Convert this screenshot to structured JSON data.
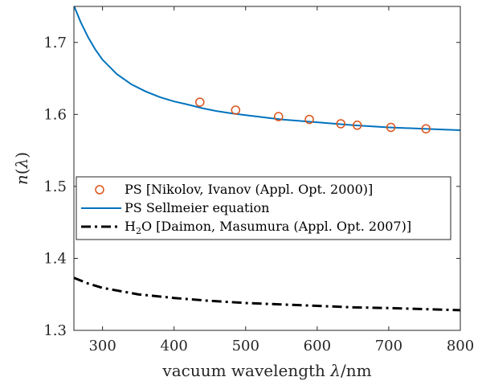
{
  "chart_data": {
    "type": "line",
    "xlabel_prefix": "vacuum wavelength ",
    "xlabel_symbol": "λ",
    "xlabel_suffix": "/nm",
    "ylabel_prefix": "n(",
    "ylabel_symbol": "λ",
    "ylabel_suffix": ")",
    "xlim": [
      260,
      800
    ],
    "ylim": [
      1.3,
      1.75
    ],
    "xticks": [
      300,
      400,
      500,
      600,
      700,
      800
    ],
    "yticks": [
      1.3,
      1.4,
      1.5,
      1.6,
      1.7
    ],
    "grid": false,
    "legend_position": "middle-left",
    "colors": {
      "ps_data": "#D95319",
      "ps_sellmeier": "#0072BD",
      "h2o": "#000000",
      "axes": "#262626"
    },
    "legend": [
      {
        "key": "ps_data",
        "label": "PS [Nikolov, Ivanov (Appl. Opt. 2000)]"
      },
      {
        "key": "ps_sellmeier",
        "label": "PS Sellmeier equation"
      },
      {
        "key": "h2o",
        "label_prefix": "H",
        "label_sub": "2",
        "label_suffix": "O [Daimon, Masumura (Appl. Opt. 2007)]"
      }
    ],
    "series": [
      {
        "key": "ps_data",
        "name": "PS [Nikolov, Ivanov (Appl. Opt. 2000)]",
        "style": "markers",
        "x": [
          436,
          486,
          546,
          589,
          633,
          656,
          703,
          752
        ],
        "y": [
          1.617,
          1.606,
          1.597,
          1.593,
          1.587,
          1.585,
          1.582,
          1.58
        ]
      },
      {
        "key": "ps_sellmeier",
        "name": "PS Sellmeier equation",
        "style": "solid",
        "x": [
          260,
          270,
          280,
          290,
          300,
          320,
          340,
          360,
          380,
          400,
          420,
          440,
          460,
          480,
          500,
          550,
          600,
          650,
          700,
          750,
          800
        ],
        "y": [
          1.751,
          1.727,
          1.707,
          1.69,
          1.676,
          1.656,
          1.642,
          1.632,
          1.624,
          1.618,
          1.6135,
          1.6085,
          1.6045,
          1.6015,
          1.599,
          1.593,
          1.589,
          1.585,
          1.582,
          1.58,
          1.578
        ]
      },
      {
        "key": "h2o",
        "name": "H2O [Daimon, Masumura (Appl. Opt. 2007)]",
        "style": "dashdot",
        "x": [
          260,
          280,
          300,
          350,
          400,
          450,
          500,
          550,
          600,
          650,
          700,
          750,
          800
        ],
        "y": [
          1.373,
          1.365,
          1.359,
          1.35,
          1.345,
          1.341,
          1.338,
          1.336,
          1.334,
          1.332,
          1.331,
          1.3295,
          1.328
        ]
      }
    ]
  }
}
